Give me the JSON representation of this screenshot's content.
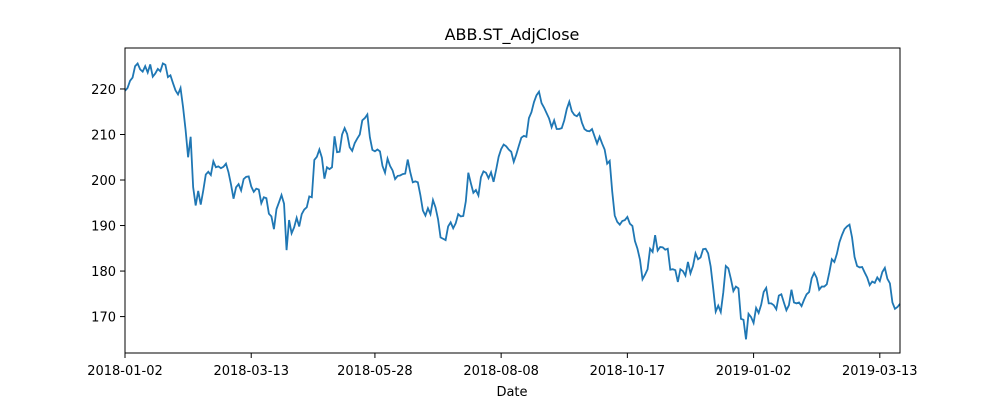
{
  "chart_data": {
    "type": "line",
    "title": "ABB.ST_AdjClose",
    "xlabel": "Date",
    "ylabel": "",
    "grid": false,
    "line_color": "#1f77b4",
    "x_ticks": [
      "2018-01-02",
      "2018-03-13",
      "2018-05-28",
      "2018-08-08",
      "2018-10-17",
      "2019-01-02",
      "2019-03-13"
    ],
    "y_ticks": [
      170,
      180,
      190,
      200,
      210,
      220
    ],
    "ylim": [
      162,
      229
    ],
    "xlim": [
      "2018-01-02",
      "2019-03-25"
    ],
    "series": [
      {
        "x": [
          "2018-01-02",
          "2018-01-03",
          "2018-01-04",
          "2018-01-05",
          "2018-01-08",
          "2018-01-09",
          "2018-01-10",
          "2018-01-11",
          "2018-01-12",
          "2018-01-15",
          "2018-01-16",
          "2018-01-17",
          "2018-01-18",
          "2018-01-19",
          "2018-01-22",
          "2018-01-23",
          "2018-01-24",
          "2018-01-25",
          "2018-01-26",
          "2018-01-29",
          "2018-01-30",
          "2018-01-31",
          "2018-02-01",
          "2018-02-02",
          "2018-02-05",
          "2018-02-06",
          "2018-02-07",
          "2018-02-08",
          "2018-02-09",
          "2018-02-12",
          "2018-02-13",
          "2018-02-14",
          "2018-02-15",
          "2018-02-16",
          "2018-02-19",
          "2018-02-20",
          "2018-02-21",
          "2018-02-22",
          "2018-02-23",
          "2018-02-26",
          "2018-02-27",
          "2018-02-28",
          "2018-03-01",
          "2018-03-02",
          "2018-03-05",
          "2018-03-06",
          "2018-03-07",
          "2018-03-08",
          "2018-03-09",
          "2018-03-12",
          "2018-03-13",
          "2018-03-14",
          "2018-03-15",
          "2018-03-16",
          "2018-03-19",
          "2018-03-20",
          "2018-03-21",
          "2018-03-22",
          "2018-03-23",
          "2018-03-26",
          "2018-03-27",
          "2018-03-28",
          "2018-04-03",
          "2018-04-04",
          "2018-04-05",
          "2018-04-06",
          "2018-04-09",
          "2018-04-10",
          "2018-04-11",
          "2018-04-12",
          "2018-04-13",
          "2018-04-16",
          "2018-04-17",
          "2018-04-18",
          "2018-04-19",
          "2018-04-20",
          "2018-04-23",
          "2018-04-24",
          "2018-04-25",
          "2018-04-26",
          "2018-04-27",
          "2018-04-30",
          "2018-05-02",
          "2018-05-03",
          "2018-05-04",
          "2018-05-07",
          "2018-05-08",
          "2018-05-09",
          "2018-05-11",
          "2018-05-14",
          "2018-05-15",
          "2018-05-16",
          "2018-05-17",
          "2018-05-18",
          "2018-05-21",
          "2018-05-22",
          "2018-05-23",
          "2018-05-24",
          "2018-05-25",
          "2018-05-28",
          "2018-05-29",
          "2018-05-30",
          "2018-05-31",
          "2018-06-01",
          "2018-06-04",
          "2018-06-05",
          "2018-06-07",
          "2018-06-08",
          "2018-06-11",
          "2018-06-12",
          "2018-06-13",
          "2018-06-14",
          "2018-06-15",
          "2018-06-18",
          "2018-06-19",
          "2018-06-20",
          "2018-06-21",
          "2018-06-25",
          "2018-06-26",
          "2018-06-27",
          "2018-06-28",
          "2018-06-29",
          "2018-07-02",
          "2018-07-03",
          "2018-07-04",
          "2018-07-05",
          "2018-07-06",
          "2018-07-09",
          "2018-07-10",
          "2018-07-11",
          "2018-07-12",
          "2018-07-13",
          "2018-07-16",
          "2018-07-17",
          "2018-07-18",
          "2018-07-19",
          "2018-07-20",
          "2018-07-23",
          "2018-07-24",
          "2018-07-25",
          "2018-07-26",
          "2018-07-27",
          "2018-07-30",
          "2018-07-31",
          "2018-08-01",
          "2018-08-02",
          "2018-08-03",
          "2018-08-06",
          "2018-08-07",
          "2018-08-08",
          "2018-08-09",
          "2018-08-10",
          "2018-08-13",
          "2018-08-14",
          "2018-08-15",
          "2018-08-16",
          "2018-08-17",
          "2018-08-20",
          "2018-08-21",
          "2018-08-22",
          "2018-08-23",
          "2018-08-24",
          "2018-08-27",
          "2018-08-28",
          "2018-08-29",
          "2018-08-30",
          "2018-08-31",
          "2018-09-03",
          "2018-09-04",
          "2018-09-05",
          "2018-09-06",
          "2018-09-07",
          "2018-09-10",
          "2018-09-11",
          "2018-09-12",
          "2018-09-13",
          "2018-09-14",
          "2018-09-17",
          "2018-09-18",
          "2018-09-19",
          "2018-09-20",
          "2018-09-21",
          "2018-09-24",
          "2018-09-25",
          "2018-09-26",
          "2018-09-27",
          "2018-09-28",
          "2018-10-01",
          "2018-10-02",
          "2018-10-03",
          "2018-10-04",
          "2018-10-05",
          "2018-10-08",
          "2018-10-09",
          "2018-10-10",
          "2018-10-11",
          "2018-10-12",
          "2018-10-15",
          "2018-10-16",
          "2018-10-17",
          "2018-10-18",
          "2018-10-19",
          "2018-10-22",
          "2018-10-23",
          "2018-10-24",
          "2018-10-25",
          "2018-10-26",
          "2018-10-29",
          "2018-10-30",
          "2018-10-31",
          "2018-11-01",
          "2018-11-02",
          "2018-11-05",
          "2018-11-06",
          "2018-11-07",
          "2018-11-08",
          "2018-11-09",
          "2018-11-12",
          "2018-11-13",
          "2018-11-14",
          "2018-11-15",
          "2018-11-16",
          "2018-11-19",
          "2018-11-20",
          "2018-11-21",
          "2018-11-22",
          "2018-11-23",
          "2018-11-26",
          "2018-11-27",
          "2018-11-28",
          "2018-11-29",
          "2018-11-30",
          "2018-12-03",
          "2018-12-04",
          "2018-12-05",
          "2018-12-06",
          "2018-12-07",
          "2018-12-10",
          "2018-12-11",
          "2018-12-12",
          "2018-12-13",
          "2018-12-14",
          "2018-12-17",
          "2018-12-18",
          "2018-12-19",
          "2018-12-20",
          "2018-12-21",
          "2018-12-27",
          "2018-12-28",
          "2019-01-02",
          "2019-01-03",
          "2019-01-04",
          "2019-01-07",
          "2019-01-08",
          "2019-01-09",
          "2019-01-10",
          "2019-01-11",
          "2019-01-14",
          "2019-01-15",
          "2019-01-16",
          "2019-01-17",
          "2019-01-18",
          "2019-01-21",
          "2019-01-22",
          "2019-01-23",
          "2019-01-24",
          "2019-01-25",
          "2019-01-28",
          "2019-01-29",
          "2019-01-30",
          "2019-01-31",
          "2019-02-01",
          "2019-02-04",
          "2019-02-05",
          "2019-02-06",
          "2019-02-07",
          "2019-02-08",
          "2019-02-11",
          "2019-02-12",
          "2019-02-13",
          "2019-02-14",
          "2019-02-15",
          "2019-02-18",
          "2019-02-19",
          "2019-02-20",
          "2019-02-21",
          "2019-02-22",
          "2019-02-25",
          "2019-02-26",
          "2019-02-27",
          "2019-02-28",
          "2019-03-01",
          "2019-03-04",
          "2019-03-05",
          "2019-03-06",
          "2019-03-07",
          "2019-03-08",
          "2019-03-11",
          "2019-03-12",
          "2019-03-13",
          "2019-03-14",
          "2019-03-15",
          "2019-03-18",
          "2019-03-19",
          "2019-03-20",
          "2019-03-21",
          "2019-03-22",
          "2019-03-25"
        ],
        "y": [
          219.6,
          220.2,
          221.8,
          222.5,
          225.0,
          225.6,
          224.3,
          223.8,
          225.0,
          223.6,
          225.4,
          222.7,
          223.4,
          224.4,
          223.9,
          225.6,
          225.3,
          222.6,
          223.0,
          221.3,
          219.7,
          218.8,
          220.2,
          216.0,
          211.0,
          205.0,
          209.5,
          198.4,
          194.4,
          197.6,
          194.6,
          197.7,
          201.2,
          201.8,
          201.1,
          204.1,
          202.8,
          203.0,
          202.6,
          202.9,
          203.6,
          201.7,
          199.0,
          195.9,
          198.4,
          199.1,
          197.7,
          200.2,
          200.7,
          200.8,
          198.6,
          197.4,
          198.1,
          197.9,
          194.9,
          196.2,
          196.0,
          192.6,
          192.0,
          189.2,
          193.6,
          195.1,
          196.7,
          194.8,
          184.6,
          191.2,
          188.3,
          189.6,
          191.7,
          189.8,
          192.5,
          193.5,
          194.0,
          196.4,
          196.2,
          204.4,
          205.1,
          206.7,
          204.9,
          200.3,
          202.8,
          202.4,
          202.8,
          209.6,
          206.1,
          206.2,
          210.0,
          211.4,
          210.1,
          207.2,
          206.4,
          208.1,
          209.1,
          210.0,
          213.1,
          213.6,
          214.4,
          209.4,
          206.6,
          206.3,
          206.7,
          206.3,
          203.1,
          201.6,
          204.7,
          203.1,
          202.1,
          200.2,
          200.9,
          201.0,
          201.3,
          201.4,
          204.5,
          201.7,
          199.5,
          199.7,
          199.5,
          196.7,
          193.3,
          192.2,
          193.8,
          192.5,
          195.6,
          194.0,
          191.4,
          187.4,
          187.1,
          186.8,
          189.8,
          190.7,
          189.4,
          190.5,
          192.5,
          192.0,
          192.1,
          195.3,
          201.6,
          199.3,
          197.2,
          197.8,
          196.6,
          200.6,
          201.9,
          201.6,
          200.4,
          201.7,
          199.6,
          202.2,
          205.1,
          206.8,
          207.8,
          207.4,
          206.7,
          206.2,
          204.0,
          205.6,
          207.5,
          209.3,
          209.7,
          209.5,
          213.6,
          214.9,
          217.1,
          218.6,
          219.4,
          216.9,
          215.9,
          214.7,
          213.5,
          211.6,
          213.1,
          211.2,
          211.2,
          211.4,
          213.1,
          215.6,
          217.2,
          215.1,
          214.3,
          214.0,
          214.7,
          212.6,
          211.2,
          210.8,
          210.7,
          211.2,
          209.6,
          208.0,
          209.5,
          208.0,
          206.7,
          203.6,
          204.2,
          197.5,
          192.2,
          190.8,
          190.2,
          191.0,
          191.2,
          191.9,
          190.4,
          189.9,
          186.6,
          184.9,
          182.5,
          178.2,
          179.2,
          180.4,
          184.9,
          184.2,
          187.9,
          184.5,
          185.3,
          185.2,
          184.7,
          184.9,
          180.3,
          180.4,
          180.2,
          177.6,
          180.4,
          180.0,
          179.0,
          182.0,
          179.5,
          181.1,
          183.9,
          182.6,
          183.0,
          184.8,
          184.9,
          183.9,
          181.0,
          176.2,
          171.1,
          172.4,
          171.0,
          175.3,
          181.1,
          180.6,
          178.3,
          175.6,
          176.6,
          176.2,
          169.5,
          169.3,
          165.0,
          170.6,
          169.9,
          168.6,
          171.9,
          170.8,
          172.6,
          175.4,
          176.3,
          172.9,
          172.9,
          172.5,
          171.6,
          174.6,
          174.9,
          173.1,
          171.4,
          172.5,
          175.9,
          173.1,
          172.9,
          173.1,
          172.3,
          173.7,
          174.9,
          175.4,
          178.4,
          179.6,
          178.5,
          175.9,
          176.6,
          176.6,
          177.1,
          179.7,
          182.6,
          182.0,
          183.8,
          186.3,
          187.9,
          189.2,
          189.8,
          190.2,
          187.4,
          183.1,
          181.1,
          180.8,
          180.9,
          179.7,
          178.6,
          176.9,
          177.7,
          177.4,
          178.6,
          177.8,
          179.8,
          180.7,
          178.3,
          177.3,
          173.1,
          171.7,
          172.1,
          172.8
        ]
      }
    ]
  }
}
